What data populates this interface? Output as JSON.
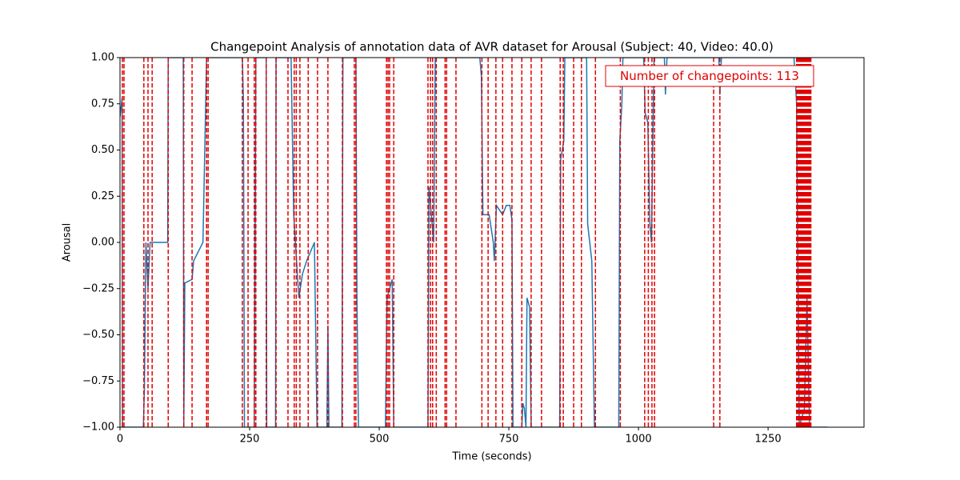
{
  "chart_data": {
    "type": "line",
    "title": "Changepoint Analysis of annotation data of AVR dataset for Arousal (Subject: 40, Video: 40.0)",
    "x_label": "Time (seconds)",
    "y_label": "Arousal",
    "annotation": "Number of changepoints: 113",
    "color": "#1f77b4",
    "changepoint_color": "#e00000",
    "xlim": [
      0,
      1435
    ],
    "ylim": [
      -1,
      1
    ],
    "xticks": [
      0,
      250,
      500,
      750,
      1000,
      1250
    ],
    "yticks": [
      {
        "value": -1,
        "label": "−1.00"
      },
      {
        "value": -0.75,
        "label": "−0.75"
      },
      {
        "value": -0.5,
        "label": "−0.50"
      },
      {
        "value": -0.25,
        "label": "−0.25"
      },
      {
        "value": 0,
        "label": "0.00"
      },
      {
        "value": 0.25,
        "label": "0.25"
      },
      {
        "value": 0.5,
        "label": "0.50"
      },
      {
        "value": 0.75,
        "label": "0.75"
      },
      {
        "value": 1,
        "label": "1.00"
      }
    ],
    "x": [
      0,
      4,
      5,
      45,
      47,
      50,
      54,
      58,
      62,
      92,
      93,
      98,
      122,
      123,
      125,
      139,
      142,
      160,
      167,
      170,
      236,
      238,
      240,
      259,
      262,
      282,
      283,
      300,
      301,
      330,
      335,
      345,
      352,
      360,
      375,
      380,
      399,
      401,
      403,
      428,
      430,
      455,
      457,
      460,
      512,
      515,
      525,
      528,
      594,
      596,
      605,
      608,
      694,
      697,
      700,
      712,
      720,
      722,
      726,
      738,
      745,
      752,
      756,
      758,
      775,
      777,
      780,
      783,
      785,
      790,
      793,
      848,
      850,
      856,
      858,
      900,
      902,
      910,
      915,
      962,
      964,
      968,
      970,
      1010,
      1013,
      1018,
      1022,
      1025,
      1030,
      1050,
      1052,
      1055,
      1155,
      1157,
      1160,
      1300,
      1305,
      1310,
      1320,
      1325,
      1330,
      1365
    ],
    "values": [
      0.68,
      0.78,
      -1,
      -1,
      -0.8,
      0,
      -0.25,
      0,
      0,
      0,
      1,
      1,
      1,
      -1,
      -0.22,
      -0.2,
      -0.1,
      0,
      1,
      1,
      1,
      0.78,
      -1,
      -1,
      1,
      1,
      -1,
      -1,
      1,
      1,
      0.15,
      -0.3,
      -0.17,
      -0.1,
      0,
      -1,
      -1,
      -0.45,
      -1,
      -1,
      1,
      1,
      -0.3,
      -1,
      -1,
      -0.3,
      -0.2,
      -1,
      -1,
      0.3,
      0,
      1,
      1,
      0.9,
      0.15,
      0.15,
      0,
      -0.1,
      0.2,
      0.15,
      0.2,
      0.2,
      0.12,
      -1,
      -1,
      -0.87,
      -0.9,
      -1,
      -0.3,
      -0.35,
      -1,
      -1,
      0.45,
      0.55,
      1,
      1,
      0.1,
      -0.1,
      -1,
      -1,
      0.55,
      0.75,
      1,
      1,
      0.7,
      0.65,
      0.1,
      0,
      1,
      1,
      0.8,
      1,
      1,
      0.8,
      1,
      1,
      0.75,
      -1,
      -0.9,
      -0.3,
      -1,
      -1
    ],
    "changepoints": [
      4.6,
      7.7,
      46,
      54,
      62,
      93,
      123,
      139,
      167,
      170,
      236,
      247,
      259,
      262,
      282,
      301,
      324,
      336,
      340,
      347,
      363,
      381,
      401,
      429,
      452,
      455,
      514,
      517,
      520,
      528,
      594,
      599,
      603,
      610,
      627,
      630,
      648,
      698,
      710,
      725,
      738,
      756,
      775,
      793,
      813,
      849,
      855,
      875,
      890,
      917,
      965,
      1012,
      1019,
      1026,
      1031,
      1145,
      1157,
      1305.0,
      1305.5,
      1306.0,
      1306.5,
      1307.0,
      1307.5,
      1308.0,
      1308.5,
      1309.0,
      1309.5,
      1310.0,
      1310.5,
      1311.0,
      1311.5,
      1312.0,
      1312.5,
      1313.0,
      1313.5,
      1314.0,
      1314.5,
      1315.0,
      1315.5,
      1316.0,
      1316.5,
      1317.0,
      1317.5,
      1318.0,
      1318.5,
      1319.0,
      1319.5,
      1320.0,
      1320.5,
      1321.0,
      1321.5,
      1322.0,
      1322.5,
      1323.0,
      1323.5,
      1324.0,
      1324.5,
      1325.0,
      1325.5,
      1326.0,
      1326.5,
      1327.0,
      1327.5,
      1328.0,
      1328.5,
      1329.0,
      1329.5,
      1330.0,
      1330.5,
      1331.0,
      1331.5,
      1332.0,
      1332.5
    ]
  }
}
